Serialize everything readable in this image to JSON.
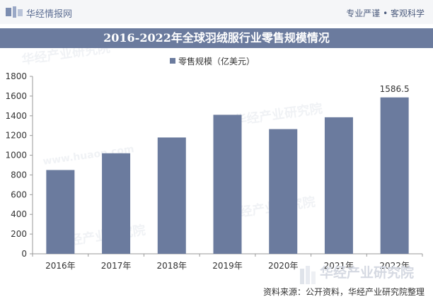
{
  "header": {
    "brand": "华经情报网",
    "tagline": "专业严谨 • 客观科学"
  },
  "watermark": {
    "text_cn": "华经产业研究院",
    "text_url": "www.huaon.com"
  },
  "footer": {
    "source": "资料来源：公开资料，华经产业研究院整理"
  },
  "colors": {
    "bar": "#6b7b9e",
    "title_bg": "#6b7b9e",
    "axis": "#999999"
  },
  "chart_data": {
    "type": "bar",
    "title": "2016-2022年全球羽绒服行业零售规模情况",
    "xlabel": "",
    "ylabel": "",
    "categories": [
      "2016年",
      "2017年",
      "2018年",
      "2019年",
      "2020年",
      "2021年",
      "2022年"
    ],
    "series": [
      {
        "name": "零售规模（亿美元）",
        "values": [
          850,
          1020,
          1180,
          1410,
          1265,
          1385,
          1586.5
        ]
      }
    ],
    "data_labels": [
      null,
      null,
      null,
      null,
      null,
      null,
      "1586.5"
    ],
    "ylim": [
      0,
      1800
    ],
    "yticks": [
      0,
      200,
      400,
      600,
      800,
      1000,
      1200,
      1400,
      1600,
      1800
    ],
    "grid": false,
    "legend_position": "top-center"
  }
}
